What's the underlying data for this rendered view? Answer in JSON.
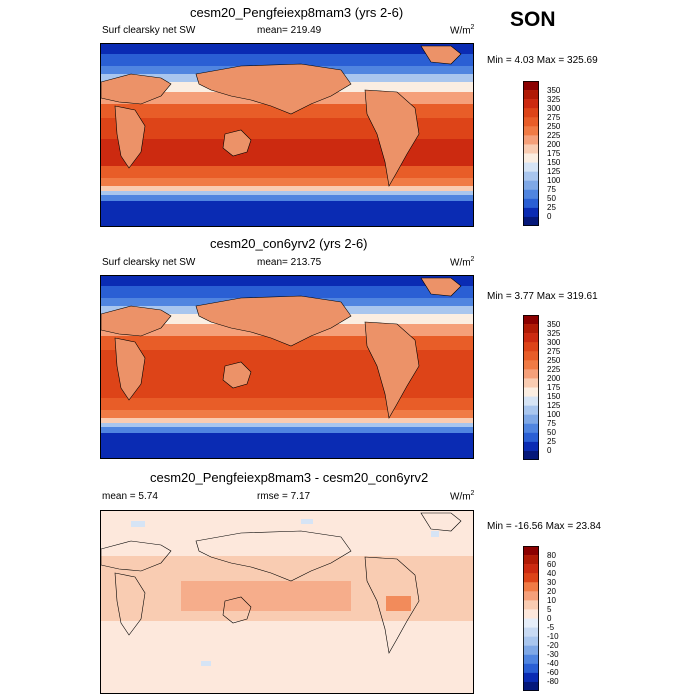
{
  "season": "SON",
  "panels": [
    {
      "id": "case",
      "title": "cesm20_Pengfeiexp8mam3 (yrs 2-6)",
      "left_label": "Surf clearsky net SW",
      "center_label": "mean= 219.49",
      "units_base": "W/m",
      "units_exp": "2",
      "minmax": "Min =   4.03 Max = 325.69",
      "colorbar": {
        "levels": [
          "350",
          "325",
          "300",
          "275",
          "250",
          "225",
          "200",
          "175",
          "150",
          "125",
          "100",
          "75",
          "50",
          "25",
          "0"
        ],
        "colors": [
          "#8b0000",
          "#b01a05",
          "#cc2a10",
          "#dd4418",
          "#e85d28",
          "#f07b45",
          "#f5a07a",
          "#f9ccb2",
          "#fbeee2",
          "#d6e4f5",
          "#a9c6ee",
          "#7fa8e6",
          "#5085e0",
          "#2a5fd4",
          "#0a2bb3",
          "#05187a"
        ]
      }
    },
    {
      "id": "control",
      "title": "cesm20_con6yrv2 (yrs 2-6)",
      "left_label": "Surf clearsky net SW",
      "center_label": "mean= 213.75",
      "units_base": "W/m",
      "units_exp": "2",
      "minmax": "Min =   3.77 Max = 319.61",
      "colorbar": {
        "levels": [
          "350",
          "325",
          "300",
          "275",
          "250",
          "225",
          "200",
          "175",
          "150",
          "125",
          "100",
          "75",
          "50",
          "25",
          "0"
        ],
        "colors": [
          "#8b0000",
          "#b01a05",
          "#cc2a10",
          "#dd4418",
          "#e85d28",
          "#f07b45",
          "#f5a07a",
          "#f9ccb2",
          "#fbeee2",
          "#d6e4f5",
          "#a9c6ee",
          "#7fa8e6",
          "#5085e0",
          "#2a5fd4",
          "#0a2bb3",
          "#05187a"
        ]
      }
    },
    {
      "id": "diff",
      "title": "cesm20_Pengfeiexp8mam3 - cesm20_con6yrv2",
      "left_label": "mean =   5.74",
      "center_label": "rmse =   7.17",
      "units_base": "W/m",
      "units_exp": "2",
      "minmax": "Min = -16.56 Max =  23.84",
      "colorbar": {
        "levels": [
          "80",
          "60",
          "40",
          "30",
          "20",
          "10",
          "5",
          "0",
          "-5",
          "-10",
          "-20",
          "-30",
          "-40",
          "-60",
          "-80"
        ],
        "colors": [
          "#8b0000",
          "#b01a05",
          "#cc2a10",
          "#dd4418",
          "#f07b45",
          "#f5a07a",
          "#f9ccb2",
          "#fde8dc",
          "#e6eef9",
          "#c8daf3",
          "#a9c6ee",
          "#7fa8e6",
          "#5085e0",
          "#2a5fd4",
          "#0a2bb3",
          "#05187a"
        ]
      }
    }
  ],
  "chart_data": {
    "type": "heatmap",
    "title": "SON",
    "variable": "Surf clearsky net SW",
    "units": "W/m2",
    "maps": [
      {
        "name": "cesm20_Pengfeiexp8mam3 (yrs 2-6)",
        "mean": 219.49,
        "min": 4.03,
        "max": 325.69
      },
      {
        "name": "cesm20_con6yrv2 (yrs 2-6)",
        "mean": 213.75,
        "min": 3.77,
        "max": 319.61
      },
      {
        "name": "cesm20_Pengfeiexp8mam3 - cesm20_con6yrv2",
        "mean": 5.74,
        "rmse": 7.17,
        "min": -16.56,
        "max": 23.84
      }
    ],
    "colorbar_levels_abs": [
      0,
      25,
      50,
      75,
      100,
      125,
      150,
      175,
      200,
      225,
      250,
      275,
      300,
      325,
      350
    ],
    "colorbar_levels_diff": [
      -80,
      -60,
      -40,
      -30,
      -20,
      -10,
      -5,
      0,
      5,
      10,
      20,
      30,
      40,
      60,
      80
    ]
  }
}
